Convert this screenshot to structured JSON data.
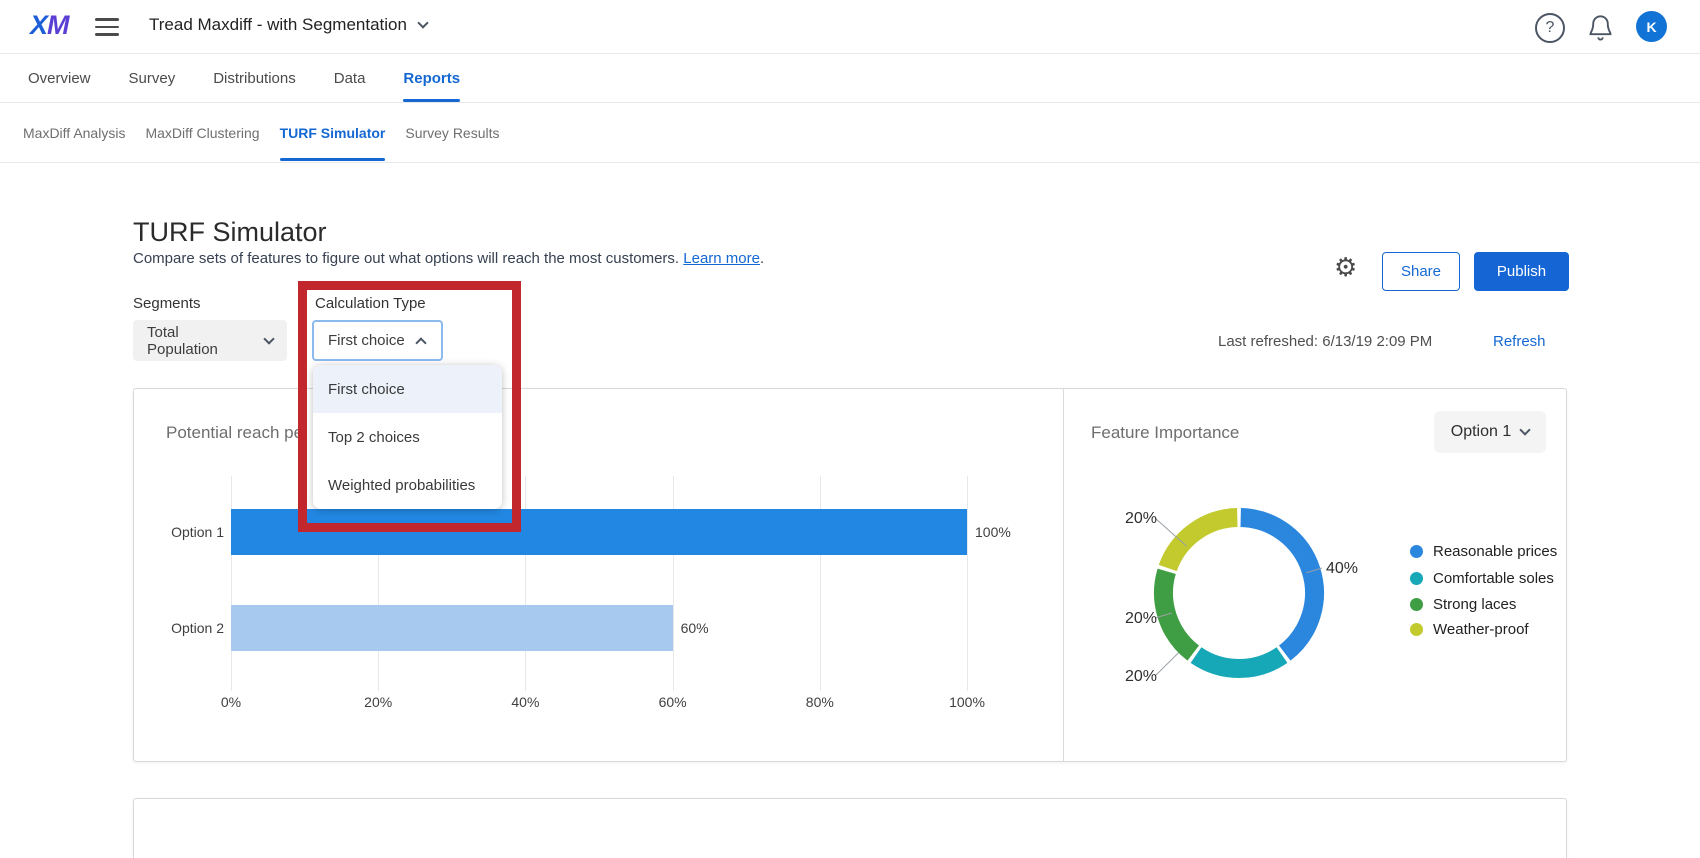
{
  "topbar": {
    "logo": "XM",
    "project_title": "Tread Maxdiff - with Segmentation",
    "help_icon": "?",
    "avatar_initial": "K"
  },
  "nav": {
    "tabs": [
      {
        "label": "Overview",
        "active": false
      },
      {
        "label": "Survey",
        "active": false
      },
      {
        "label": "Distributions",
        "active": false
      },
      {
        "label": "Data",
        "active": false
      },
      {
        "label": "Reports",
        "active": true
      }
    ]
  },
  "subnav": {
    "items": [
      {
        "label": "MaxDiff Analysis",
        "active": false
      },
      {
        "label": "MaxDiff Clustering",
        "active": false
      },
      {
        "label": "TURF Simulator",
        "active": true
      },
      {
        "label": "Survey Results",
        "active": false
      }
    ]
  },
  "header": {
    "title": "TURF Simulator",
    "description": "Compare sets of features to figure out what options will reach the most customers.",
    "learn_more_label": "Learn more",
    "period": ".",
    "gear_icon": "⚙",
    "share_label": "Share",
    "publish_label": "Publish"
  },
  "controls": {
    "segments_label": "Segments",
    "segments_value": "Total Population",
    "calculation_type_label": "Calculation Type",
    "calculation_type_value": "First choice",
    "dropdown_options": [
      "First choice",
      "Top 2 choices",
      "Weighted probabilities"
    ],
    "dropdown_selected": "First choice",
    "last_refreshed": "Last refreshed: 6/13/19 2:09 PM",
    "refresh_label": "Refresh"
  },
  "chart_data": [
    {
      "type": "bar",
      "orientation": "horizontal",
      "title": "Potential reach pe",
      "categories": [
        "Option 1",
        "Option 2"
      ],
      "values": [
        100,
        60
      ],
      "value_labels": [
        "100%",
        "60%"
      ],
      "bar_colors": [
        "#2287e2",
        "#a7c8ef"
      ],
      "x_ticks": [
        0,
        20,
        40,
        60,
        80,
        100
      ],
      "x_tick_labels": [
        "0%",
        "20%",
        "40%",
        "60%",
        "80%",
        "100%"
      ],
      "xlim": [
        0,
        100
      ],
      "grid": "vertical"
    },
    {
      "type": "pie",
      "subtype": "donut",
      "title": "Feature Importance",
      "selector_value": "Option 1",
      "slices": [
        {
          "label": "Reasonable prices",
          "value": 40,
          "pct_label": "40%",
          "color": "#2b87dd"
        },
        {
          "label": "Comfortable soles",
          "value": 20,
          "pct_label": "20%",
          "color": "#17a8b8"
        },
        {
          "label": "Strong laces",
          "value": 20,
          "pct_label": "20%",
          "color": "#3f9e44"
        },
        {
          "label": "Weather-proof",
          "value": 20,
          "pct_label": "20%",
          "color": "#c2ca2e"
        }
      ],
      "legend_position": "right"
    }
  ],
  "annotation": {
    "type": "highlight-box",
    "color": "#c1272d"
  },
  "colors": {
    "accent_blue": "#1568d2",
    "publish_blue": "#1566d4",
    "avatar_blue": "#1273d6"
  }
}
